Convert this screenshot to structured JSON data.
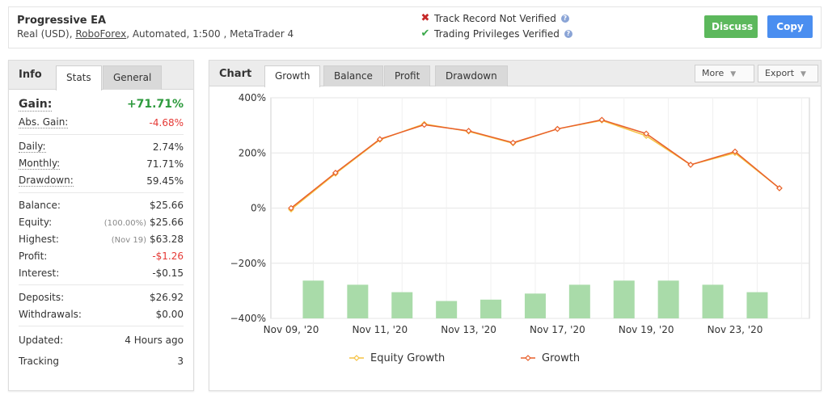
{
  "account": {
    "title": "Progressive EA",
    "type": "Real (USD),",
    "broker": "RoboForex",
    "details": ", Automated, 1:500 , MetaTrader 4"
  },
  "verification": {
    "track_record": "Track Record Not Verified",
    "trading_privileges": "Trading Privileges Verified"
  },
  "actions": {
    "discuss": "Discuss",
    "copy": "Copy"
  },
  "info_panel": {
    "label": "Info",
    "tabs": [
      "Stats",
      "General"
    ],
    "gain": {
      "label": "Gain:",
      "value": "+71.71%"
    },
    "abs_gain": {
      "label": "Abs. Gain:",
      "value": "-4.68%"
    },
    "daily": {
      "label": "Daily:",
      "value": "2.74%"
    },
    "monthly": {
      "label": "Monthly:",
      "value": "71.71%"
    },
    "drawdown": {
      "label": "Drawdown:",
      "value": "59.45%"
    },
    "balance": {
      "label": "Balance:",
      "value": "$25.66"
    },
    "equity": {
      "label": "Equity:",
      "note": "(100.00%)",
      "value": "$25.66"
    },
    "highest": {
      "label": "Highest:",
      "note": "(Nov 19)",
      "value": "$63.28"
    },
    "profit": {
      "label": "Profit:",
      "value": "-$1.26"
    },
    "interest": {
      "label": "Interest:",
      "value": "-$0.15"
    },
    "deposits": {
      "label": "Deposits:",
      "value": "$26.92"
    },
    "withdrawals": {
      "label": "Withdrawals:",
      "value": "$0.00"
    },
    "updated": {
      "label": "Updated:",
      "value": "4 Hours ago"
    },
    "tracking": {
      "label": "Tracking",
      "value": "3"
    }
  },
  "chart_panel": {
    "label": "Chart",
    "tabs": [
      "Growth",
      "Balance",
      "Profit",
      "Drawdown"
    ],
    "more": "More",
    "export": "Export"
  },
  "colors": {
    "growth": "#e8602c",
    "equity": "#f5c242",
    "bars": "#a9dba9",
    "grid": "#e6e6e6"
  },
  "chart_data": {
    "type": "line",
    "ylim": [
      -400,
      400
    ],
    "yticks": [
      400,
      200,
      0,
      -200,
      -400
    ],
    "ytick_labels": [
      "400%",
      "200%",
      "0%",
      "−200%",
      "−400%"
    ],
    "xtick_labels": [
      "Nov 09, '20",
      "Nov 11, '20",
      "Nov 13, '20",
      "Nov 17, '20",
      "Nov 19, '20",
      "Nov 23, '20"
    ],
    "n_points": 12,
    "xtick_indices": [
      0,
      2,
      4,
      6,
      8,
      10
    ],
    "series": [
      {
        "name": "Equity Growth",
        "values": [
          -5,
          125,
          248,
          305,
          278,
          235,
          287,
          318,
          262,
          157,
          200,
          72
        ]
      },
      {
        "name": "Growth",
        "values": [
          0,
          128,
          250,
          302,
          280,
          237,
          287,
          320,
          270,
          157,
          205,
          72
        ]
      }
    ],
    "bars": [
      -263,
      -278,
      -305,
      -337,
      -332,
      -310,
      -278,
      -263,
      -263,
      -278,
      -305
    ],
    "legend": "bottom"
  }
}
